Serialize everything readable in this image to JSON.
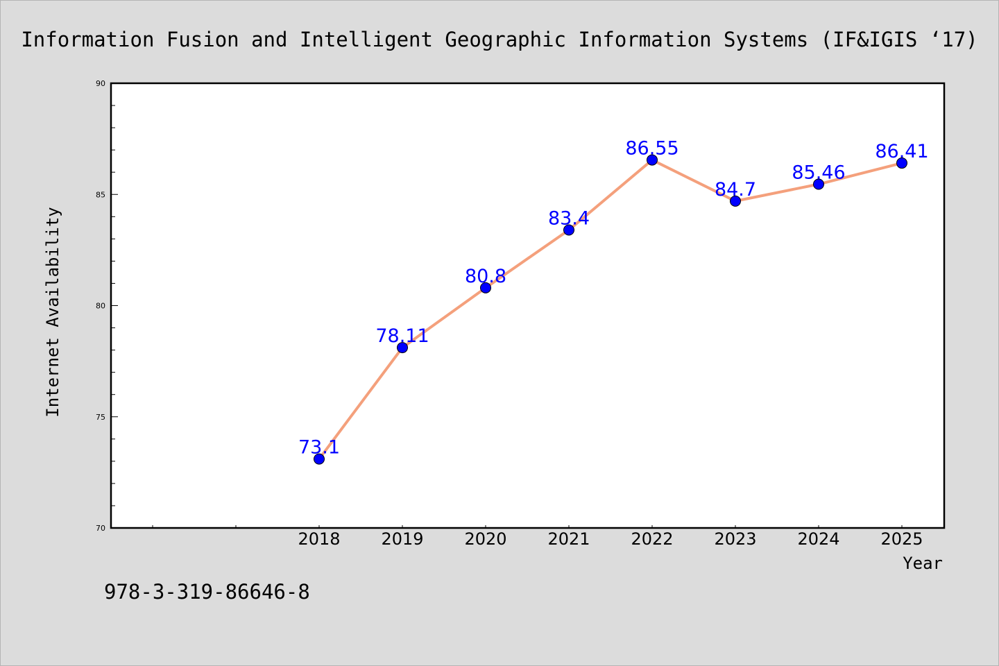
{
  "chart_data": {
    "type": "line",
    "title": "Information Fusion and Intelligent Geographic Information Systems (IF&IGIS ‘17)",
    "xlabel": "Year",
    "ylabel": "Internet Availability",
    "categories": [
      "2018",
      "2019",
      "2020",
      "2021",
      "2022",
      "2023",
      "2024",
      "2025"
    ],
    "series": [
      {
        "values": [
          73.1,
          78.11,
          80.8,
          83.4,
          86.55,
          84.7,
          85.46,
          86.41
        ],
        "labels": [
          "73.1",
          "78.11",
          "80.8",
          "83.4",
          "86.55",
          "84.7",
          "85.46",
          "86.41"
        ]
      }
    ],
    "ylim": [
      70,
      90
    ],
    "yticks": [
      "70",
      "75",
      "80",
      "85",
      "90"
    ],
    "line_color": "#f4a07c",
    "marker_color": "#0000ff",
    "label_color": "#0000ff",
    "grid": false,
    "legend": "none"
  },
  "footer": {
    "isbn": "978-3-319-86646-8"
  }
}
